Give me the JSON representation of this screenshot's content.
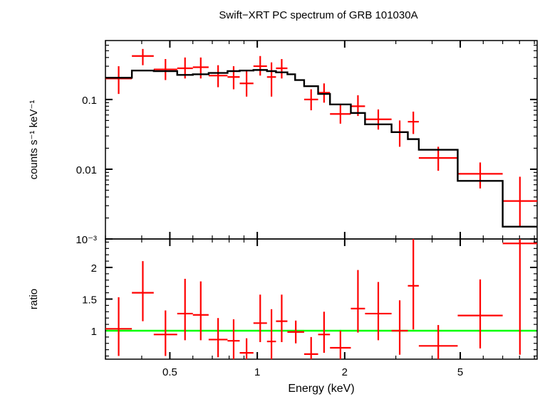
{
  "chart_data": {
    "type": "scatter",
    "title": "Swift−XRT PC spectrum of GRB 101030A",
    "xlabel": "Energy (keV)",
    "x_scale": "log",
    "xlim": [
      0.3,
      9.2
    ],
    "x_ticks": [
      {
        "value": 0.5,
        "label": "0.5"
      },
      {
        "value": 1,
        "label": "1"
      },
      {
        "value": 2,
        "label": "2"
      },
      {
        "value": 5,
        "label": "5"
      }
    ],
    "colors": {
      "data": "#ff0000",
      "model": "#000000",
      "unity": "#00ff00"
    },
    "panels": [
      {
        "name": "spectrum",
        "ylabel": "counts s⁻¹ keV⁻¹",
        "y_scale": "log",
        "ylim": [
          0.001,
          0.7
        ],
        "y_ticks": [
          {
            "value": 0.1,
            "label": "0.1"
          },
          {
            "value": 0.01,
            "label": "0.01"
          },
          {
            "value": 0.001,
            "label": "10⁻³"
          }
        ],
        "series": [
          {
            "kind": "errorbars",
            "points": [
              {
                "x0": 0.3,
                "x1": 0.37,
                "y": 0.2,
                "ylo": 0.12,
                "yhi": 0.3
              },
              {
                "x0": 0.37,
                "x1": 0.44,
                "y": 0.42,
                "ylo": 0.31,
                "yhi": 0.53
              },
              {
                "x0": 0.44,
                "x1": 0.53,
                "y": 0.27,
                "ylo": 0.19,
                "yhi": 0.38
              },
              {
                "x0": 0.53,
                "x1": 0.6,
                "y": 0.28,
                "ylo": 0.2,
                "yhi": 0.4
              },
              {
                "x0": 0.6,
                "x1": 0.68,
                "y": 0.29,
                "ylo": 0.2,
                "yhi": 0.4
              },
              {
                "x0": 0.68,
                "x1": 0.79,
                "y": 0.22,
                "ylo": 0.15,
                "yhi": 0.31
              },
              {
                "x0": 0.79,
                "x1": 0.87,
                "y": 0.21,
                "ylo": 0.14,
                "yhi": 0.3
              },
              {
                "x0": 0.87,
                "x1": 0.97,
                "y": 0.17,
                "ylo": 0.11,
                "yhi": 0.26
              },
              {
                "x0": 0.97,
                "x1": 1.08,
                "y": 0.3,
                "ylo": 0.22,
                "yhi": 0.42
              },
              {
                "x0": 1.08,
                "x1": 1.16,
                "y": 0.21,
                "ylo": 0.11,
                "yhi": 0.34
              },
              {
                "x0": 1.16,
                "x1": 1.27,
                "y": 0.28,
                "ylo": 0.2,
                "yhi": 0.38
              },
              {
                "x0": 1.45,
                "x1": 1.62,
                "y": 0.1,
                "ylo": 0.07,
                "yhi": 0.14
              },
              {
                "x0": 1.62,
                "x1": 1.78,
                "y": 0.125,
                "ylo": 0.09,
                "yhi": 0.17
              },
              {
                "x0": 1.78,
                "x1": 2.1,
                "y": 0.062,
                "ylo": 0.045,
                "yhi": 0.086
              },
              {
                "x0": 2.1,
                "x1": 2.35,
                "y": 0.08,
                "ylo": 0.058,
                "yhi": 0.115
              },
              {
                "x0": 2.35,
                "x1": 2.9,
                "y": 0.052,
                "ylo": 0.037,
                "yhi": 0.072
              },
              {
                "x0": 2.9,
                "x1": 3.3,
                "y": 0.034,
                "ylo": 0.021,
                "yhi": 0.05
              },
              {
                "x0": 3.3,
                "x1": 3.6,
                "y": 0.048,
                "ylo": 0.032,
                "yhi": 0.067
              },
              {
                "x0": 3.6,
                "x1": 4.9,
                "y": 0.0145,
                "ylo": 0.0095,
                "yhi": 0.021
              },
              {
                "x0": 4.9,
                "x1": 7.0,
                "y": 0.0086,
                "ylo": 0.0053,
                "yhi": 0.0125
              },
              {
                "x0": 7.0,
                "x1": 9.2,
                "y": 0.0035,
                "ylo": 0.0015,
                "yhi": 0.0078
              }
            ]
          },
          {
            "kind": "step",
            "edges": [
              0.3,
              0.37,
              0.44,
              0.53,
              0.6,
              0.68,
              0.79,
              0.87,
              0.97,
              1.08,
              1.16,
              1.27,
              1.35,
              1.45,
              1.62,
              1.78,
              2.1,
              2.35,
              2.9,
              3.3,
              3.6,
              4.9,
              7.0,
              9.2
            ],
            "values": [
              0.205,
              0.26,
              0.255,
              0.225,
              0.23,
              0.24,
              0.255,
              0.26,
              0.265,
              0.255,
              0.245,
              0.23,
              0.19,
              0.155,
              0.12,
              0.085,
              0.064,
              0.044,
              0.034,
              0.027,
              0.019,
              0.0068,
              0.0015
            ]
          }
        ]
      },
      {
        "name": "ratio",
        "ylabel": "ratio",
        "y_scale": "linear",
        "ylim": [
          0.55,
          2.45
        ],
        "y_ticks": [
          {
            "value": 1,
            "label": "1"
          },
          {
            "value": 1.5,
            "label": "1.5"
          },
          {
            "value": 2,
            "label": "2"
          }
        ],
        "reference_line": 1,
        "series": [
          {
            "kind": "errorbars",
            "points": [
              {
                "x0": 0.3,
                "x1": 0.37,
                "y": 1.03,
                "ylo": 0.6,
                "yhi": 1.53
              },
              {
                "x0": 0.37,
                "x1": 0.44,
                "y": 1.6,
                "ylo": 1.15,
                "yhi": 2.1
              },
              {
                "x0": 0.44,
                "x1": 0.53,
                "y": 0.94,
                "ylo": 0.6,
                "yhi": 1.32
              },
              {
                "x0": 0.53,
                "x1": 0.6,
                "y": 1.27,
                "ylo": 0.85,
                "yhi": 1.82
              },
              {
                "x0": 0.6,
                "x1": 0.68,
                "y": 1.25,
                "ylo": 0.85,
                "yhi": 1.78
              },
              {
                "x0": 0.68,
                "x1": 0.79,
                "y": 0.86,
                "ylo": 0.58,
                "yhi": 1.2
              },
              {
                "x0": 0.79,
                "x1": 0.87,
                "y": 0.84,
                "ylo": 0.55,
                "yhi": 1.18
              },
              {
                "x0": 0.87,
                "x1": 0.97,
                "y": 0.65,
                "ylo": 0.55,
                "yhi": 0.88
              },
              {
                "x0": 0.97,
                "x1": 1.08,
                "y": 1.12,
                "ylo": 0.82,
                "yhi": 1.57
              },
              {
                "x0": 1.08,
                "x1": 1.16,
                "y": 0.83,
                "ylo": 0.55,
                "yhi": 1.34
              },
              {
                "x0": 1.16,
                "x1": 1.27,
                "y": 1.15,
                "ylo": 0.82,
                "yhi": 1.57
              },
              {
                "x0": 1.27,
                "x1": 1.45,
                "y": 0.98,
                "ylo": 0.8,
                "yhi": 1.16
              },
              {
                "x0": 1.45,
                "x1": 1.62,
                "y": 0.63,
                "ylo": 0.55,
                "yhi": 0.9
              },
              {
                "x0": 1.62,
                "x1": 1.78,
                "y": 0.94,
                "ylo": 0.65,
                "yhi": 1.3
              },
              {
                "x0": 1.78,
                "x1": 2.1,
                "y": 0.73,
                "ylo": 0.55,
                "yhi": 1.0
              },
              {
                "x0": 2.1,
                "x1": 2.35,
                "y": 1.35,
                "ylo": 0.97,
                "yhi": 1.96
              },
              {
                "x0": 2.35,
                "x1": 2.9,
                "y": 1.27,
                "ylo": 0.85,
                "yhi": 1.77
              },
              {
                "x0": 2.9,
                "x1": 3.3,
                "y": 1.0,
                "ylo": 0.62,
                "yhi": 1.48
              },
              {
                "x0": 3.3,
                "x1": 3.6,
                "y": 1.71,
                "ylo": 1.02,
                "yhi": 2.45
              },
              {
                "x0": 3.6,
                "x1": 4.9,
                "y": 0.76,
                "ylo": 0.55,
                "yhi": 1.09
              },
              {
                "x0": 4.9,
                "x1": 7.0,
                "y": 1.24,
                "ylo": 0.72,
                "yhi": 1.81
              },
              {
                "x0": 7.0,
                "x1": 9.2,
                "y": 2.38,
                "ylo": 0.62,
                "yhi": 2.45
              }
            ]
          }
        ]
      }
    ]
  }
}
